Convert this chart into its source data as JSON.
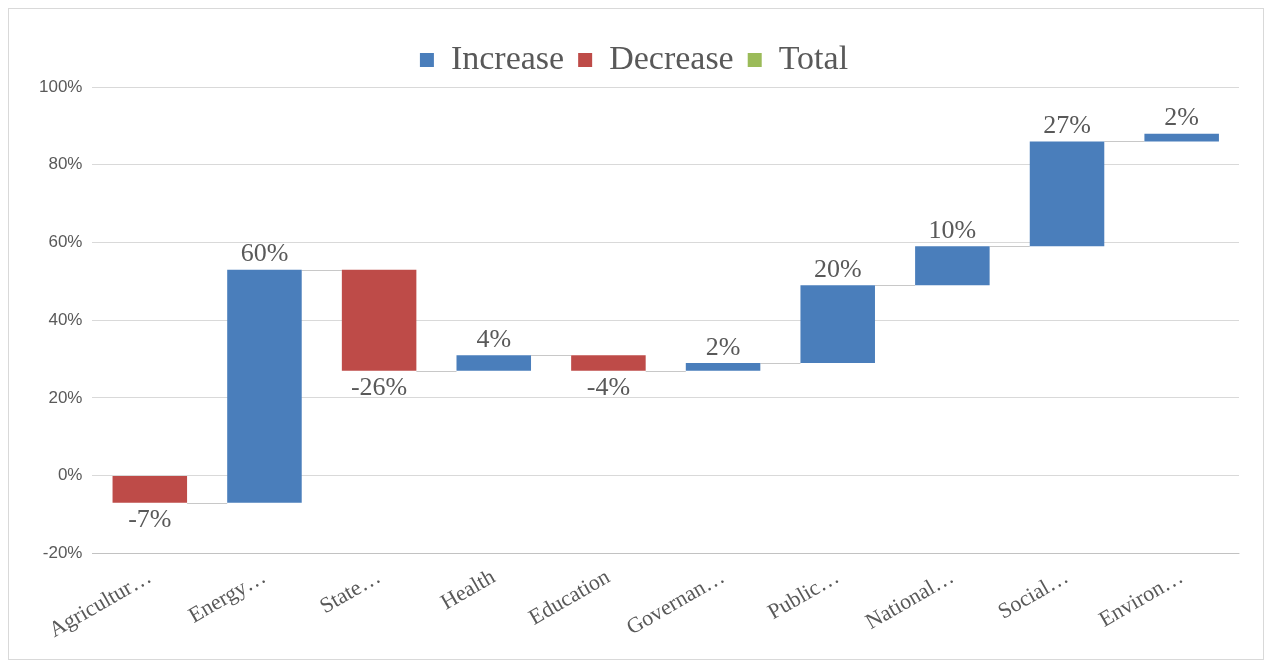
{
  "chart_data": {
    "type": "bar",
    "categories": [
      "Agricultur…",
      "Energy…",
      "State…",
      "Health",
      "Education",
      "Governan…",
      "Public…",
      "National…",
      "Social…",
      "Environ…"
    ],
    "series": [
      {
        "name": "Increase",
        "color": "#4a7ebb",
        "values": [
          null,
          60,
          null,
          4,
          null,
          2,
          20,
          10,
          27,
          2
        ],
        "base": [
          null,
          -7,
          null,
          27,
          null,
          27,
          29,
          49,
          59,
          86
        ],
        "value_labels": [
          null,
          "60%",
          null,
          "4%",
          null,
          "2%",
          "20%",
          "10%",
          "27%",
          "2%"
        ]
      },
      {
        "name": "Decrease",
        "color": "#be4b48",
        "values": [
          -7,
          null,
          -26,
          null,
          -4,
          null,
          null,
          null,
          null,
          null
        ],
        "base": [
          0,
          null,
          53,
          null,
          31,
          null,
          null,
          null,
          null,
          null
        ],
        "value_labels": [
          "-7%",
          null,
          "-26%",
          null,
          "-4%",
          null,
          null,
          null,
          null,
          null
        ]
      },
      {
        "name": "Total",
        "color": "#9bbb59",
        "values": [
          null,
          null,
          null,
          null,
          null,
          null,
          null,
          null,
          null,
          null
        ]
      }
    ],
    "ylim": [
      -20,
      100
    ],
    "yticks": [
      {
        "value": -20,
        "label": "-20%"
      },
      {
        "value": 0,
        "label": "0%"
      },
      {
        "value": 20,
        "label": "20%"
      },
      {
        "value": 40,
        "label": "40%"
      },
      {
        "value": 60,
        "label": "60%"
      },
      {
        "value": 80,
        "label": "80%"
      },
      {
        "value": 100,
        "label": "100%"
      }
    ],
    "grid": "y",
    "legend": "top"
  }
}
